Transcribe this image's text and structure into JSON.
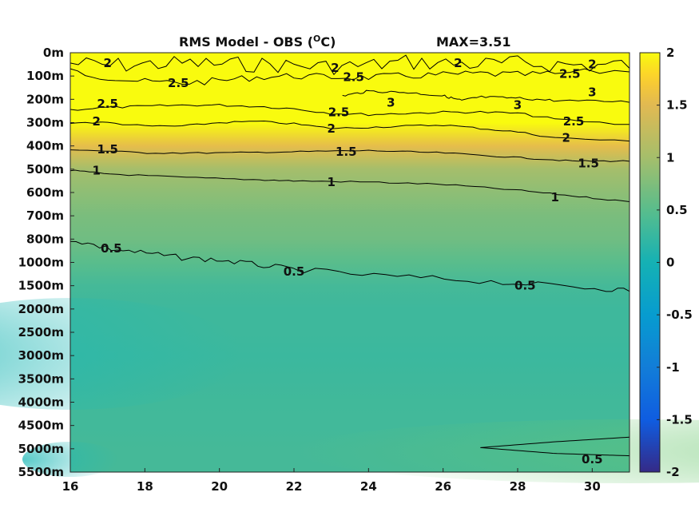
{
  "chart_data": {
    "type": "heatmap",
    "title": "RMS Model - OBS (",
    "title_unit": "O",
    "title_unit_tail": "C)",
    "max_label": "MAX=3.51",
    "xlabel": "",
    "ylabel": "",
    "x_ticks": [
      "16",
      "18",
      "20",
      "22",
      "24",
      "26",
      "28",
      "30"
    ],
    "xlim": [
      16,
      31
    ],
    "y_ticks": [
      "0m",
      "100m",
      "200m",
      "300m",
      "400m",
      "500m",
      "600m",
      "700m",
      "800m",
      "1000m",
      "1500m",
      "2000m",
      "2500m",
      "3000m",
      "3500m",
      "4000m",
      "4500m",
      "5000m",
      "5500m"
    ],
    "colorbar_ticks": [
      "2",
      "1.5",
      "1",
      "0.5",
      "0",
      "-0.5",
      "-1",
      "-1.5",
      "-2"
    ],
    "clim": [
      -2,
      2
    ],
    "colormap": "parula",
    "colors": {
      "low": "#352a87",
      "mid": "#16b2c6",
      "high": "#f9fb0e"
    },
    "levels_by_depth": [
      3.0,
      2.6,
      2.6,
      2.2,
      1.55,
      1.0,
      0.85,
      0.72,
      0.65,
      0.5,
      0.35,
      0.3,
      0.3,
      0.28,
      0.3,
      0.32,
      0.33,
      0.35,
      0.35
    ],
    "contour_labels": [
      {
        "text": "2",
        "x": 17.0,
        "y": 0.45
      },
      {
        "text": "2.5",
        "x": 18.9,
        "y": 1.3
      },
      {
        "text": "2.5",
        "x": 17.0,
        "y": 2.2
      },
      {
        "text": "2",
        "x": 16.7,
        "y": 2.95
      },
      {
        "text": "1.5",
        "x": 17.0,
        "y": 4.15
      },
      {
        "text": "1",
        "x": 16.7,
        "y": 5.05
      },
      {
        "text": "0.5",
        "x": 17.1,
        "y": 8.4
      },
      {
        "text": "2",
        "x": 23.1,
        "y": 0.65
      },
      {
        "text": "2.5",
        "x": 23.6,
        "y": 1.05
      },
      {
        "text": "2.5",
        "x": 23.2,
        "y": 2.55
      },
      {
        "text": "2",
        "x": 23.0,
        "y": 3.25
      },
      {
        "text": "1.5",
        "x": 23.4,
        "y": 4.25
      },
      {
        "text": "1",
        "x": 23.0,
        "y": 5.55
      },
      {
        "text": "0.5",
        "x": 22.0,
        "y": 9.4
      },
      {
        "text": "3",
        "x": 24.6,
        "y": 2.15
      },
      {
        "text": "2",
        "x": 26.4,
        "y": 0.45
      },
      {
        "text": "3",
        "x": 28.0,
        "y": 2.25
      },
      {
        "text": "2.5",
        "x": 29.4,
        "y": 0.9
      },
      {
        "text": "2",
        "x": 30.0,
        "y": 0.5
      },
      {
        "text": "3",
        "x": 30.0,
        "y": 1.7
      },
      {
        "text": "2.5",
        "x": 29.5,
        "y": 2.95
      },
      {
        "text": "2",
        "x": 29.3,
        "y": 3.65
      },
      {
        "text": "1.5",
        "x": 29.9,
        "y": 4.75
      },
      {
        "text": "1",
        "x": 29.0,
        "y": 6.2
      },
      {
        "text": "0.5",
        "x": 28.2,
        "y": 10.0
      },
      {
        "text": "0.5",
        "x": 30.0,
        "y": 17.45
      }
    ]
  }
}
